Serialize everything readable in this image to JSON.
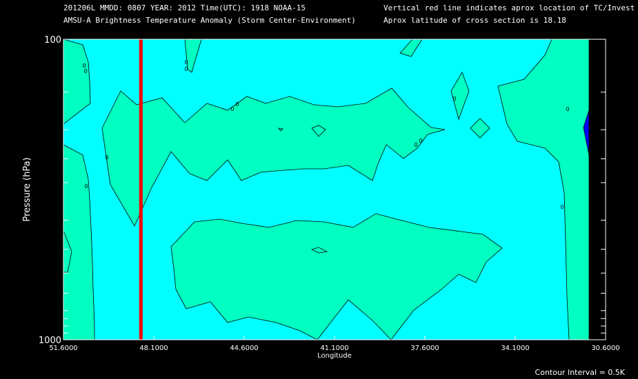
{
  "header": {
    "line1_left": "201206L  MMDD: 0807 YEAR: 2012 Time(UTC): 1918 NOAA-15",
    "line2_left": "AMSU-A Brightness Temperature Anomaly (Storm Center-Environment)",
    "line1_right": "Vertical red line indicates aprox location of TC/Invest",
    "line2_right": "Aprox latitude of cross section is 18.18"
  },
  "footer": {
    "contour_interval": "Contour Interval = 0.5K"
  },
  "chart_data": {
    "type": "heatmap",
    "title": "AMSU-A Brightness Temperature Anomaly (Storm Center-Environment)",
    "xlabel": "Longitude",
    "ylabel": "Pressure (hPa)",
    "x_ticks": [
      "51.6000",
      "48.1000",
      "44.6000",
      "41.1000",
      "37.6000",
      "34.1000",
      "30.6000"
    ],
    "x_tick_values": [
      51.6,
      48.1,
      44.6,
      41.1,
      37.6,
      34.1,
      30.6
    ],
    "xlim": [
      51.6,
      30.6
    ],
    "y_ticks": [
      "100",
      "1000"
    ],
    "ylim": [
      1000,
      100
    ],
    "y_scale": "log",
    "y_minor_ticks": [
      150,
      200,
      250,
      300,
      400,
      500,
      600,
      700,
      800,
      850,
      900,
      950
    ],
    "tc_longitude": 48.6,
    "contour_interval": 0.5,
    "contour_labels": [
      "0",
      "0",
      "0",
      "0",
      "0",
      "0",
      "0",
      "0",
      "0",
      "0",
      "0",
      "0",
      "0"
    ],
    "colors": {
      "background": "#00ffff",
      "anomaly_positive": "#00ffc0",
      "anomaly_negative": "#0000ff",
      "tc_line": "#ff0000",
      "axes": "#ffffff"
    }
  }
}
